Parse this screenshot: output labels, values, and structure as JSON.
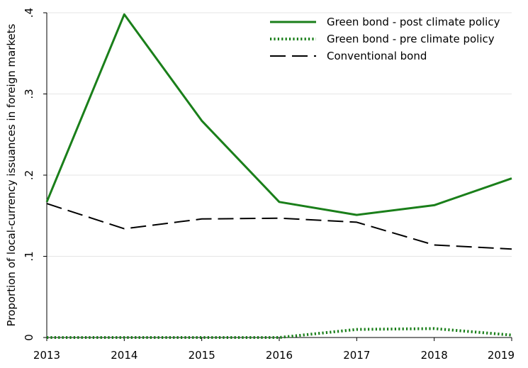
{
  "chart_data": {
    "type": "line",
    "title": "",
    "xlabel": "",
    "ylabel": "Proportion of local-currency issuances in foreign markets",
    "x": [
      2013,
      2014,
      2015,
      2016,
      2017,
      2018,
      2019
    ],
    "x_tick_labels": [
      "2013",
      "2014",
      "2015",
      "2016",
      "2017",
      "2018",
      "2019"
    ],
    "xlim": [
      2013,
      2019
    ],
    "ylim": [
      0,
      0.4
    ],
    "y_ticks": [
      0,
      0.1,
      0.2,
      0.3,
      0.4
    ],
    "y_tick_labels": [
      "0",
      ".1",
      ".2",
      ".3",
      ".4"
    ],
    "grid": "horizontal",
    "legend_position": "top-right",
    "series": [
      {
        "name": "Green bond - post climate policy",
        "values": [
          0.167,
          0.398,
          0.267,
          0.167,
          0.151,
          0.163,
          0.196
        ],
        "color": "#1a7f1a",
        "style": "solid"
      },
      {
        "name": "Green bond - pre climate policy",
        "values": [
          0.0,
          0.0,
          0.0,
          0.0,
          0.01,
          0.011,
          0.003
        ],
        "color": "#1a7f1a",
        "style": "dotted"
      },
      {
        "name": "Conventional bond",
        "values": [
          0.165,
          0.134,
          0.146,
          0.147,
          0.142,
          0.114,
          0.109
        ],
        "color": "#000000",
        "style": "dashed"
      }
    ]
  }
}
